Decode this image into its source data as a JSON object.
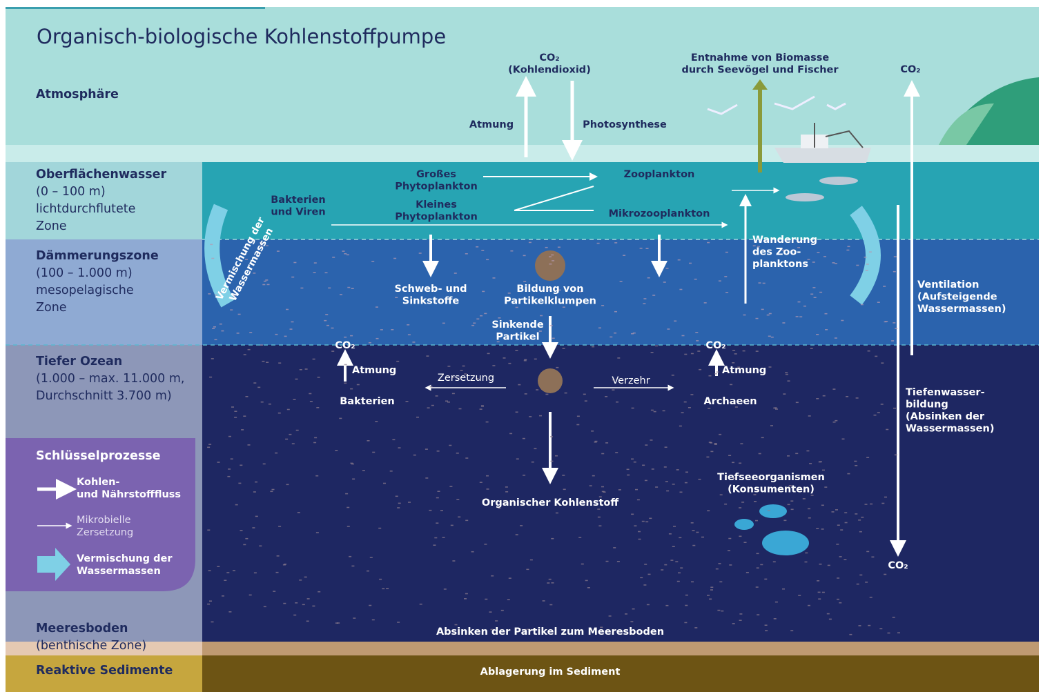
{
  "title": "Organisch-biologische Kohlenstoffpumpe",
  "zones": [
    {
      "name": "Atmosphäre",
      "lines": []
    },
    {
      "name": "Oberflächenwasser",
      "lines": [
        "(0 – 100 m)",
        "lichtdurchflutete",
        "Zone"
      ]
    },
    {
      "name": "Dämmerungszone",
      "lines": [
        "(100 – 1.000 m)",
        "mesopelagische",
        "Zone"
      ]
    },
    {
      "name": "Tiefer Ozean",
      "lines": [
        "(1.000 – max. 11.000 m,",
        "Durchschnitt 3.700 m)"
      ]
    },
    {
      "name": "Meeresboden",
      "lines": [
        "(benthische Zone)"
      ]
    },
    {
      "name": "Reaktive Sedimente",
      "lines": []
    }
  ],
  "legend": {
    "title": "Schlüsselprozesse",
    "items": [
      {
        "lines": [
          "Kohlen-",
          "und Nährstofffluss"
        ]
      },
      {
        "lines": [
          "Mikrobielle",
          "Zersetzung"
        ]
      },
      {
        "lines": [
          "Vermischung der",
          "Wassermassen"
        ]
      }
    ]
  },
  "labels": [
    {
      "lines": [
        "CO₂",
        "(Kohlendioxid)"
      ]
    },
    {
      "lines": [
        "Entnahme von Biomasse",
        "durch Seevögel und Fischer"
      ]
    },
    {
      "lines": [
        "CO₂"
      ]
    },
    {
      "lines": [
        "Atmung"
      ]
    },
    {
      "lines": [
        "Photosynthese"
      ]
    },
    {
      "lines": [
        "Großes",
        "Phytoplankton"
      ]
    },
    {
      "lines": [
        "Kleines",
        "Phytoplankton"
      ]
    },
    {
      "lines": [
        "Bakterien",
        "und Viren"
      ]
    },
    {
      "lines": [
        "Zooplankton"
      ]
    },
    {
      "lines": [
        "Mikrozooplankton"
      ]
    },
    {
      "lines": [
        "Wanderung",
        "des Zoo-",
        "planktons"
      ]
    },
    {
      "lines": [
        "Vermischung der",
        "Wassermassen"
      ]
    },
    {
      "lines": [
        "Schweb- und",
        "Sinkstoffe"
      ]
    },
    {
      "lines": [
        "Bildung von",
        "Partikelklumpen"
      ]
    },
    {
      "lines": [
        "Sinkende",
        "Partikel"
      ]
    },
    {
      "lines": [
        "Ventilation",
        "(Aufsteigende",
        "Wassermassen)"
      ]
    },
    {
      "lines": [
        "CO₂"
      ]
    },
    {
      "lines": [
        "Atmung"
      ]
    },
    {
      "lines": [
        "Bakterien"
      ]
    },
    {
      "lines": [
        "Zersetzung"
      ]
    },
    {
      "lines": [
        "Verzehr"
      ]
    },
    {
      "lines": [
        "CO₂"
      ]
    },
    {
      "lines": [
        "Atmung"
      ]
    },
    {
      "lines": [
        "Archaeen"
      ]
    },
    {
      "lines": [
        "Tiefenwasser-",
        "bildung",
        "(Absinken der",
        "Wassermassen)"
      ]
    },
    {
      "lines": [
        "Tiefseeorganismen",
        "(Konsumenten)"
      ]
    },
    {
      "lines": [
        "Organischer Kohlenstoff"
      ]
    },
    {
      "lines": [
        "CO₂"
      ]
    },
    {
      "lines": [
        "Absinken der Partikel zum Meeresboden"
      ]
    },
    {
      "lines": [
        "Ablagerung im Sediment"
      ]
    }
  ]
}
